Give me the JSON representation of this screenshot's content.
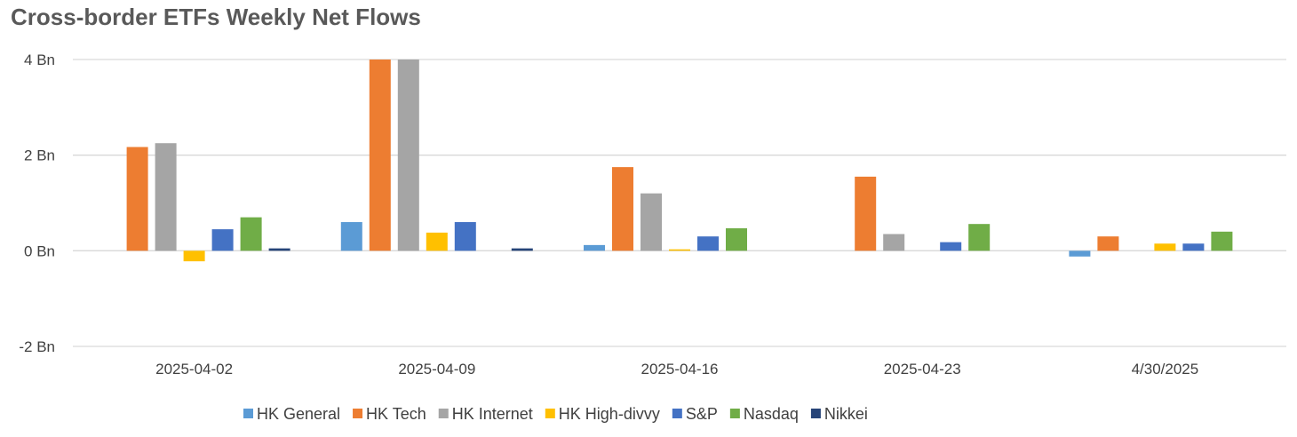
{
  "chart_data": {
    "type": "bar",
    "title": "Cross-border ETFs Weekly Net Flows",
    "xlabel": "",
    "ylabel": "",
    "categories": [
      "2025-04-02",
      "2025-04-09",
      "2025-04-16",
      "2025-04-23",
      "4/30/2025"
    ],
    "ylim": [
      -2,
      4
    ],
    "yticks": [
      {
        "value": -2,
        "label": "-2 Bn"
      },
      {
        "value": 0,
        "label": "0 Bn"
      },
      {
        "value": 2,
        "label": "2 Bn"
      },
      {
        "value": 4,
        "label": "4 Bn"
      }
    ],
    "grid": true,
    "legend_position": "bottom",
    "series": [
      {
        "name": "HK General",
        "color": "#5B9BD5",
        "values": [
          0,
          0.6,
          0.12,
          0,
          -0.12
        ]
      },
      {
        "name": "HK Tech",
        "color": "#ED7D31",
        "values": [
          2.17,
          4.0,
          1.75,
          1.55,
          0.3
        ]
      },
      {
        "name": "HK Internet",
        "color": "#A5A5A5",
        "values": [
          2.25,
          4.0,
          1.2,
          0.35,
          0
        ]
      },
      {
        "name": "HK High-divvy",
        "color": "#FFC000",
        "values": [
          -0.22,
          0.38,
          0.03,
          0,
          0.15
        ]
      },
      {
        "name": "S&P",
        "color": "#4472C4",
        "values": [
          0.45,
          0.6,
          0.3,
          0.18,
          0.15
        ]
      },
      {
        "name": "Nasdaq",
        "color": "#70AD47",
        "values": [
          0.7,
          0,
          0.47,
          0.56,
          0.4
        ]
      },
      {
        "name": "Nikkei",
        "color": "#264478",
        "values": [
          0.05,
          0.05,
          0,
          0,
          0
        ]
      }
    ]
  }
}
